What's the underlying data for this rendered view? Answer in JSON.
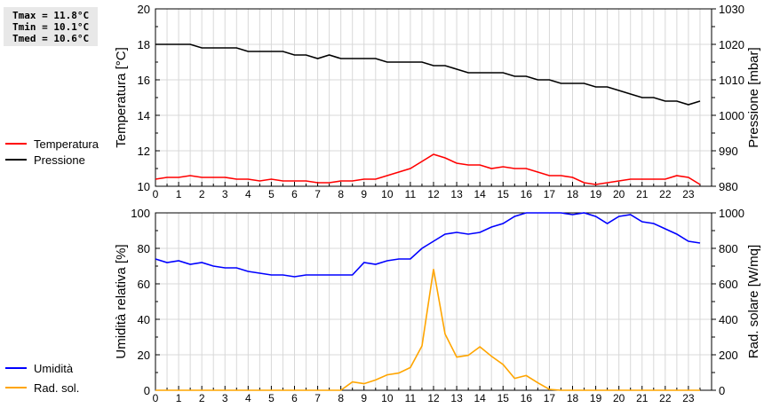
{
  "stats": {
    "tmax": "Tmax = 11.8°C",
    "tmin": "Tmin = 10.1°C",
    "tmed": "Tmed = 10.6°C"
  },
  "chart_data": [
    {
      "type": "line",
      "x": [
        0,
        0.5,
        1,
        1.5,
        2,
        2.5,
        3,
        3.5,
        4,
        4.5,
        5,
        5.5,
        6,
        6.5,
        7,
        7.5,
        8,
        8.5,
        9,
        9.5,
        10,
        10.5,
        11,
        11.5,
        12,
        12.5,
        13,
        13.5,
        14,
        14.5,
        15,
        15.5,
        16,
        16.5,
        17,
        17.5,
        18,
        18.5,
        19,
        19.5,
        20,
        20.5,
        21,
        21.5,
        22,
        22.5,
        23,
        23.5
      ],
      "xticks": [
        "0",
        "1",
        "2",
        "3",
        "4",
        "5",
        "6",
        "7",
        "8",
        "9",
        "10",
        "11",
        "12",
        "13",
        "14",
        "15",
        "16",
        "17",
        "18",
        "19",
        "20",
        "21",
        "22",
        "23"
      ],
      "xlim": [
        0,
        24
      ],
      "ylabel": "Temperatura [°C]",
      "ylim": [
        10,
        20
      ],
      "yticks": [
        "10",
        "12",
        "14",
        "16",
        "18",
        "20"
      ],
      "y2label": "Pressione [mbar]",
      "y2lim": [
        980,
        1030
      ],
      "y2ticks": [
        "980",
        "990",
        "1000",
        "1010",
        "1020",
        "1030"
      ],
      "grid": true,
      "legend": "left",
      "series": [
        {
          "name": "Temperatura",
          "axis": "left",
          "color": "#ff0000",
          "values": [
            10.4,
            10.5,
            10.5,
            10.6,
            10.5,
            10.5,
            10.5,
            10.4,
            10.4,
            10.3,
            10.4,
            10.3,
            10.3,
            10.3,
            10.2,
            10.2,
            10.3,
            10.3,
            10.4,
            10.4,
            10.6,
            10.8,
            11.0,
            11.4,
            11.8,
            11.6,
            11.3,
            11.2,
            11.2,
            11.0,
            11.1,
            11.0,
            11.0,
            10.8,
            10.6,
            10.6,
            10.5,
            10.2,
            10.1,
            10.2,
            10.3,
            10.4,
            10.4,
            10.4,
            10.4,
            10.6,
            10.5,
            10.1
          ]
        },
        {
          "name": "Pressione",
          "axis": "right",
          "color": "#000000",
          "values": [
            1020,
            1020,
            1020,
            1020,
            1019,
            1019,
            1019,
            1019,
            1018,
            1018,
            1018,
            1018,
            1017,
            1017,
            1016,
            1017,
            1016,
            1016,
            1016,
            1016,
            1015,
            1015,
            1015,
            1015,
            1014,
            1014,
            1013,
            1012,
            1012,
            1012,
            1012,
            1011,
            1011,
            1010,
            1010,
            1009,
            1009,
            1009,
            1008,
            1008,
            1007,
            1006,
            1005,
            1005,
            1004,
            1004,
            1003,
            1004
          ]
        }
      ]
    },
    {
      "type": "line",
      "x": [
        0,
        0.5,
        1,
        1.5,
        2,
        2.5,
        3,
        3.5,
        4,
        4.5,
        5,
        5.5,
        6,
        6.5,
        7,
        7.5,
        8,
        8.5,
        9,
        9.5,
        10,
        10.5,
        11,
        11.5,
        12,
        12.5,
        13,
        13.5,
        14,
        14.5,
        15,
        15.5,
        16,
        16.5,
        17,
        17.5,
        18,
        18.5,
        19,
        19.5,
        20,
        20.5,
        21,
        21.5,
        22,
        22.5,
        23,
        23.5
      ],
      "xticks": [
        "0",
        "1",
        "2",
        "3",
        "4",
        "5",
        "6",
        "7",
        "8",
        "9",
        "10",
        "11",
        "12",
        "13",
        "14",
        "15",
        "16",
        "17",
        "18",
        "19",
        "20",
        "21",
        "22",
        "23"
      ],
      "xlim": [
        0,
        24
      ],
      "ylabel": "Umidità relativa [%]",
      "ylim": [
        0,
        100
      ],
      "yticks": [
        "0",
        "20",
        "40",
        "60",
        "80",
        "100"
      ],
      "y2label": "Rad. solare [W/mq]",
      "y2lim": [
        0,
        1000
      ],
      "y2ticks": [
        "0",
        "200",
        "400",
        "600",
        "800",
        "1000"
      ],
      "grid": true,
      "legend": "left",
      "series": [
        {
          "name": "Umidità",
          "axis": "left",
          "color": "#0000ff",
          "values": [
            74,
            72,
            73,
            71,
            72,
            70,
            69,
            69,
            67,
            66,
            65,
            65,
            64,
            65,
            65,
            65,
            65,
            65,
            72,
            71,
            73,
            74,
            74,
            80,
            84,
            88,
            89,
            88,
            89,
            92,
            94,
            98,
            100,
            100,
            100,
            100,
            99,
            100,
            98,
            94,
            98,
            99,
            95,
            94,
            91,
            88,
            84,
            83
          ]
        },
        {
          "name": "Rad. sol.",
          "axis": "right",
          "color": "#ffa500",
          "values": [
            0,
            0,
            0,
            0,
            0,
            0,
            0,
            0,
            0,
            0,
            0,
            0,
            0,
            0,
            0,
            0,
            0,
            47,
            37,
            58,
            87,
            97,
            128,
            250,
            683,
            317,
            187,
            197,
            245,
            192,
            145,
            67,
            83,
            42,
            5,
            0,
            0,
            0,
            0,
            0,
            0,
            0,
            0,
            0,
            0,
            0,
            0,
            0
          ]
        }
      ]
    }
  ]
}
